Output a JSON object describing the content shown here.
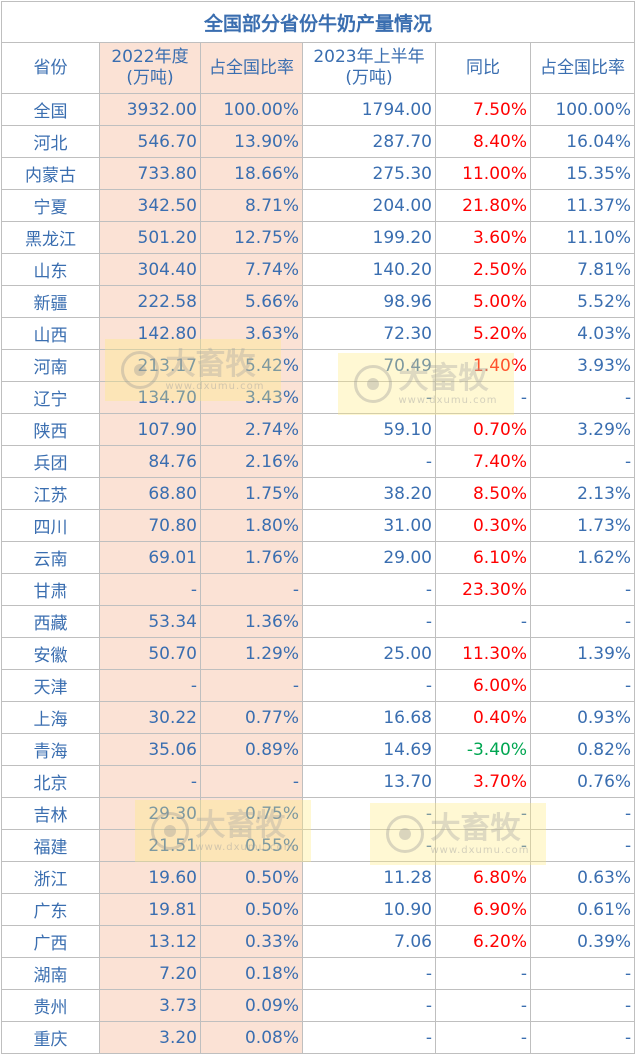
{
  "title": "全国部分省份牛奶产量情况",
  "headers": [
    "省份",
    "2022年度\n(万吨)",
    "占全国比率",
    "2023年上半年\n(万吨)",
    "同比",
    "占全国比率"
  ],
  "rows": [
    [
      "全国",
      "3932.00",
      "100.00%",
      "1794.00",
      "7.50%",
      "100.00%"
    ],
    [
      "河北",
      "546.70",
      "13.90%",
      "287.70",
      "8.40%",
      "16.04%"
    ],
    [
      "内蒙古",
      "733.80",
      "18.66%",
      "275.30",
      "11.00%",
      "15.35%"
    ],
    [
      "宁夏",
      "342.50",
      "8.71%",
      "204.00",
      "21.80%",
      "11.37%"
    ],
    [
      "黑龙江",
      "501.20",
      "12.75%",
      "199.20",
      "3.60%",
      "11.10%"
    ],
    [
      "山东",
      "304.40",
      "7.74%",
      "140.20",
      "2.50%",
      "7.81%"
    ],
    [
      "新疆",
      "222.58",
      "5.66%",
      "98.96",
      "5.00%",
      "5.52%"
    ],
    [
      "山西",
      "142.80",
      "3.63%",
      "72.30",
      "5.20%",
      "4.03%"
    ],
    [
      "河南",
      "213.17",
      "5.42%",
      "70.49",
      "1.40%",
      "3.93%"
    ],
    [
      "辽宁",
      "134.70",
      "3.43%",
      "-",
      "-",
      "-"
    ],
    [
      "陕西",
      "107.90",
      "2.74%",
      "59.10",
      "0.70%",
      "3.29%"
    ],
    [
      "兵团",
      "84.76",
      "2.16%",
      "-",
      "7.40%",
      "-"
    ],
    [
      "江苏",
      "68.80",
      "1.75%",
      "38.20",
      "8.50%",
      "2.13%"
    ],
    [
      "四川",
      "70.80",
      "1.80%",
      "31.00",
      "0.30%",
      "1.73%"
    ],
    [
      "云南",
      "69.01",
      "1.76%",
      "29.00",
      "6.10%",
      "1.62%"
    ],
    [
      "甘肃",
      "-",
      "-",
      "-",
      "23.30%",
      "-"
    ],
    [
      "西藏",
      "53.34",
      "1.36%",
      "-",
      "-",
      "-"
    ],
    [
      "安徽",
      "50.70",
      "1.29%",
      "25.00",
      "11.30%",
      "1.39%"
    ],
    [
      "天津",
      "-",
      "-",
      "-",
      "6.00%",
      "-"
    ],
    [
      "上海",
      "30.22",
      "0.77%",
      "16.68",
      "0.40%",
      "0.93%"
    ],
    [
      "青海",
      "35.06",
      "0.89%",
      "14.69",
      "-3.40%",
      "0.82%"
    ],
    [
      "北京",
      "-",
      "-",
      "13.70",
      "3.70%",
      "0.76%"
    ],
    [
      "吉林",
      "29.30",
      "0.75%",
      "-",
      "-",
      "-"
    ],
    [
      "福建",
      "21.51",
      "0.55%",
      "-",
      "-",
      "-"
    ],
    [
      "浙江",
      "19.60",
      "0.50%",
      "11.28",
      "6.80%",
      "0.63%"
    ],
    [
      "广东",
      "19.81",
      "0.50%",
      "10.90",
      "6.90%",
      "0.61%"
    ],
    [
      "广西",
      "13.12",
      "0.33%",
      "7.06",
      "6.20%",
      "0.39%"
    ],
    [
      "湖南",
      "7.20",
      "0.18%",
      "-",
      "-",
      "-"
    ],
    [
      "贵州",
      "3.73",
      "0.09%",
      "-",
      "-",
      "-"
    ],
    [
      "重庆",
      "3.20",
      "0.08%",
      "-",
      "-",
      "-"
    ]
  ],
  "watermark": {
    "brand": "大畜牧",
    "url": "www.dxumu.com"
  },
  "colors": {
    "text": "#3a6eb0",
    "peach": "#fbe2d5",
    "up": "#ff0000",
    "down": "#00a651",
    "border": "#bfbfbf"
  }
}
